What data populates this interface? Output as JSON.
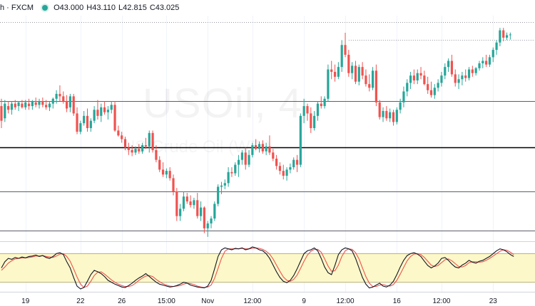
{
  "header": {
    "symbol_label": "h · FXCM",
    "open_label": "O43.000",
    "high_label": "H43.110",
    "low_label": "L42.815",
    "close_label": "C43.025",
    "status_color": "#26a69a"
  },
  "watermark": {
    "symbol": "USOil, 4",
    "description": "US Crude Oil (WTI)"
  },
  "chart_data": {
    "type": "candlestick",
    "instrument": "USOil",
    "ylim": [
      34.6,
      43.8
    ],
    "colors": {
      "up": "#26a69a",
      "down": "#ef5350",
      "grid": "#000000"
    },
    "x_ticks": [
      {
        "label": "19",
        "bar": 7
      },
      {
        "label": "22",
        "bar": 23
      },
      {
        "label": "26",
        "bar": 35
      },
      {
        "label": "15:00",
        "bar": 48
      },
      {
        "label": "Nov",
        "bar": 60
      },
      {
        "label": "12:00",
        "bar": 73
      },
      {
        "label": "9",
        "bar": 88
      },
      {
        "label": "12:00",
        "bar": 100
      },
      {
        "label": "16",
        "bar": 115
      },
      {
        "label": "12:00",
        "bar": 128
      },
      {
        "label": "23",
        "bar": 143
      }
    ],
    "horizontal_levels": [
      {
        "value": 43.55,
        "style": "dotted"
      },
      {
        "value": 40.3,
        "style": "solid"
      },
      {
        "value": 38.4,
        "style": "solid-bold"
      },
      {
        "value": 36.6,
        "style": "solid"
      },
      {
        "value": 35.0,
        "style": "solid"
      }
    ],
    "close_levels": [
      {
        "value": 42.8,
        "from_bar": 101,
        "style": "dotted"
      }
    ],
    "candles": [
      [
        40.1,
        40.4,
        39.2,
        39.5
      ],
      [
        39.6,
        40.35,
        39.45,
        40.2
      ],
      [
        40.1,
        40.3,
        39.8,
        39.95
      ],
      [
        39.95,
        40.3,
        39.75,
        40.2
      ],
      [
        40.2,
        40.35,
        39.95,
        40.05
      ],
      [
        40.1,
        40.3,
        39.9,
        40.25
      ],
      [
        40.2,
        40.35,
        40.0,
        40.05
      ],
      [
        40.05,
        40.35,
        39.95,
        40.25
      ],
      [
        40.2,
        40.4,
        39.95,
        40.1
      ],
      [
        40.1,
        40.35,
        39.95,
        40.3
      ],
      [
        40.25,
        40.45,
        40.05,
        40.15
      ],
      [
        40.15,
        40.4,
        40.0,
        40.3
      ],
      [
        40.3,
        40.45,
        40.05,
        40.15
      ],
      [
        40.15,
        40.35,
        39.95,
        40.05
      ],
      [
        40.05,
        40.3,
        39.9,
        40.2
      ],
      [
        40.2,
        40.45,
        40.0,
        40.4
      ],
      [
        40.4,
        40.75,
        40.2,
        40.6
      ],
      [
        40.6,
        40.95,
        40.3,
        40.5
      ],
      [
        40.5,
        40.7,
        40.2,
        40.3
      ],
      [
        40.3,
        40.55,
        39.85,
        40.0
      ],
      [
        40.05,
        40.6,
        39.85,
        40.5
      ],
      [
        40.5,
        40.6,
        39.7,
        39.8
      ],
      [
        39.8,
        40.05,
        38.95,
        39.05
      ],
      [
        39.05,
        39.5,
        38.95,
        39.4
      ],
      [
        39.4,
        39.9,
        39.3,
        39.7
      ],
      [
        39.7,
        40.0,
        39.05,
        39.2
      ],
      [
        39.2,
        39.6,
        39.05,
        39.5
      ],
      [
        39.5,
        40.1,
        39.4,
        39.95
      ],
      [
        39.95,
        40.35,
        39.55,
        39.7
      ],
      [
        39.7,
        40.2,
        39.45,
        40.05
      ],
      [
        40.05,
        40.3,
        39.75,
        39.85
      ],
      [
        39.85,
        40.1,
        39.55,
        39.95
      ],
      [
        39.95,
        40.3,
        39.8,
        40.15
      ],
      [
        40.15,
        40.3,
        39.05,
        39.1
      ],
      [
        39.1,
        39.3,
        38.85,
        38.9
      ],
      [
        38.9,
        39.05,
        38.6,
        38.75
      ],
      [
        38.75,
        38.85,
        38.3,
        38.4
      ],
      [
        38.4,
        38.6,
        38.1,
        38.3
      ],
      [
        38.3,
        38.5,
        38.05,
        38.2
      ],
      [
        38.2,
        38.45,
        38.1,
        38.35
      ],
      [
        38.35,
        38.55,
        38.15,
        38.25
      ],
      [
        38.25,
        38.6,
        38.15,
        38.5
      ],
      [
        38.5,
        38.8,
        38.35,
        38.45
      ],
      [
        38.45,
        39.1,
        38.2,
        39.0
      ],
      [
        39.0,
        39.1,
        38.2,
        38.3
      ],
      [
        38.3,
        38.5,
        37.8,
        37.9
      ],
      [
        37.9,
        38.05,
        37.4,
        37.5
      ],
      [
        37.5,
        37.8,
        37.2,
        37.3
      ],
      [
        37.3,
        37.55,
        37.15,
        37.45
      ],
      [
        37.45,
        37.6,
        37.05,
        37.15
      ],
      [
        37.15,
        37.3,
        36.45,
        36.6
      ],
      [
        36.6,
        36.75,
        35.4,
        35.6
      ],
      [
        35.6,
        36.1,
        35.4,
        35.9
      ],
      [
        35.9,
        36.6,
        35.8,
        36.4
      ],
      [
        36.4,
        36.55,
        36.1,
        36.2
      ],
      [
        36.2,
        36.45,
        35.95,
        36.05
      ],
      [
        36.05,
        36.35,
        35.9,
        36.25
      ],
      [
        36.25,
        36.55,
        35.5,
        35.6
      ],
      [
        35.6,
        36.2,
        35.4,
        35.95
      ],
      [
        35.95,
        36.0,
        34.9,
        35.1
      ],
      [
        35.1,
        35.4,
        34.75,
        35.3
      ],
      [
        35.3,
        35.6,
        35.1,
        35.5
      ],
      [
        35.5,
        36.2,
        35.4,
        36.1
      ],
      [
        36.1,
        36.9,
        36.0,
        36.8
      ],
      [
        36.8,
        37.0,
        36.5,
        36.85
      ],
      [
        36.85,
        37.1,
        36.7,
        36.95
      ],
      [
        36.95,
        37.6,
        36.8,
        37.4
      ],
      [
        37.4,
        37.6,
        37.2,
        37.35
      ],
      [
        37.35,
        37.8,
        37.25,
        37.7
      ],
      [
        37.7,
        38.1,
        37.2,
        37.9
      ],
      [
        37.9,
        38.3,
        37.7,
        38.2
      ],
      [
        38.2,
        38.4,
        37.5,
        37.7
      ],
      [
        37.7,
        38.3,
        37.6,
        38.1
      ],
      [
        38.1,
        38.6,
        38.0,
        38.5
      ],
      [
        38.5,
        38.75,
        38.3,
        38.35
      ],
      [
        38.35,
        38.65,
        38.2,
        38.55
      ],
      [
        38.55,
        38.7,
        38.15,
        38.25
      ],
      [
        38.25,
        38.6,
        38.1,
        38.45
      ],
      [
        38.45,
        38.9,
        38.1,
        38.2
      ],
      [
        38.2,
        38.35,
        37.85,
        37.95
      ],
      [
        37.95,
        38.1,
        37.5,
        37.65
      ],
      [
        37.65,
        37.8,
        37.3,
        37.45
      ],
      [
        37.45,
        37.7,
        37.1,
        37.25
      ],
      [
        37.25,
        37.6,
        37.05,
        37.5
      ],
      [
        37.5,
        37.75,
        37.35,
        37.6
      ],
      [
        37.6,
        38.0,
        37.5,
        37.9
      ],
      [
        37.9,
        38.1,
        37.4,
        37.7
      ],
      [
        37.7,
        39.8,
        37.6,
        39.7
      ],
      [
        39.7,
        40.4,
        39.4,
        40.1
      ],
      [
        40.1,
        40.2,
        39.5,
        39.8
      ],
      [
        39.8,
        40.05,
        39.0,
        39.2
      ],
      [
        39.2,
        39.9,
        39.1,
        39.7
      ],
      [
        39.7,
        40.3,
        39.5,
        40.2
      ],
      [
        40.2,
        40.5,
        40.0,
        40.1
      ],
      [
        40.1,
        40.5,
        40.0,
        40.4
      ],
      [
        40.4,
        41.8,
        40.3,
        41.6
      ],
      [
        41.6,
        41.95,
        41.2,
        41.5
      ],
      [
        41.5,
        41.8,
        41.1,
        41.3
      ],
      [
        41.3,
        41.9,
        41.2,
        41.7
      ],
      [
        41.7,
        42.8,
        41.5,
        42.6
      ],
      [
        42.6,
        43.1,
        42.1,
        42.2
      ],
      [
        42.2,
        42.4,
        41.3,
        41.45
      ],
      [
        41.45,
        41.9,
        41.2,
        41.75
      ],
      [
        41.75,
        41.95,
        41.0,
        41.1
      ],
      [
        41.1,
        41.8,
        40.95,
        41.7
      ],
      [
        41.7,
        41.9,
        41.2,
        41.35
      ],
      [
        41.35,
        41.6,
        40.9,
        41.0
      ],
      [
        41.0,
        41.4,
        40.7,
        40.85
      ],
      [
        40.85,
        41.7,
        40.75,
        41.55
      ],
      [
        41.55,
        41.8,
        40.1,
        40.25
      ],
      [
        40.25,
        40.35,
        39.55,
        39.65
      ],
      [
        39.65,
        40.05,
        39.45,
        39.9
      ],
      [
        39.9,
        40.1,
        39.5,
        39.6
      ],
      [
        39.6,
        40.0,
        39.45,
        39.85
      ],
      [
        39.85,
        39.95,
        39.3,
        39.45
      ],
      [
        39.45,
        40.05,
        39.35,
        39.95
      ],
      [
        39.95,
        40.4,
        39.8,
        40.25
      ],
      [
        40.25,
        40.9,
        40.05,
        40.7
      ],
      [
        40.7,
        41.2,
        40.5,
        41.05
      ],
      [
        41.05,
        41.5,
        40.8,
        41.35
      ],
      [
        41.35,
        41.6,
        41.0,
        41.15
      ],
      [
        41.15,
        41.6,
        41.0,
        41.45
      ],
      [
        41.45,
        41.7,
        41.2,
        41.35
      ],
      [
        41.35,
        41.55,
        40.95,
        41.0
      ],
      [
        41.0,
        41.3,
        40.6,
        40.75
      ],
      [
        40.75,
        41.1,
        40.45,
        40.55
      ],
      [
        40.55,
        41.0,
        40.4,
        40.85
      ],
      [
        40.85,
        41.2,
        40.7,
        41.05
      ],
      [
        41.05,
        41.5,
        40.9,
        41.35
      ],
      [
        41.35,
        41.85,
        41.2,
        41.7
      ],
      [
        41.7,
        42.05,
        41.5,
        41.95
      ],
      [
        41.95,
        42.2,
        41.3,
        41.4
      ],
      [
        41.4,
        41.6,
        40.9,
        41.05
      ],
      [
        41.05,
        41.4,
        40.8,
        41.2
      ],
      [
        41.2,
        41.5,
        40.95,
        41.35
      ],
      [
        41.35,
        41.6,
        41.1,
        41.25
      ],
      [
        41.25,
        41.7,
        41.15,
        41.6
      ],
      [
        41.6,
        41.75,
        41.3,
        41.45
      ],
      [
        41.45,
        41.7,
        41.35,
        41.65
      ],
      [
        41.65,
        41.95,
        41.55,
        41.85
      ],
      [
        41.85,
        42.1,
        41.65,
        41.95
      ],
      [
        41.95,
        42.2,
        41.7,
        41.8
      ],
      [
        41.8,
        42.2,
        41.7,
        42.1
      ],
      [
        42.1,
        42.5,
        41.9,
        42.4
      ],
      [
        42.4,
        42.8,
        42.2,
        42.7
      ],
      [
        42.7,
        43.3,
        42.55,
        43.2
      ],
      [
        43.2,
        43.3,
        42.75,
        42.9
      ],
      [
        42.9,
        43.11,
        42.8,
        43.0
      ],
      [
        43.0,
        43.11,
        42.82,
        43.03
      ]
    ],
    "stochastic": {
      "ylim": [
        0,
        100
      ],
      "band": [
        20,
        80
      ],
      "band_color": "#fcf8c9",
      "k_color": "#131722",
      "d_color": "#ef5350",
      "k": [
        50,
        63,
        70,
        68,
        72,
        70,
        73,
        71,
        74,
        75,
        77,
        74,
        76,
        72,
        70,
        74,
        80,
        82,
        78,
        63,
        50,
        30,
        12,
        6,
        9,
        22,
        36,
        45,
        42,
        38,
        32,
        24,
        20,
        16,
        13,
        10,
        9,
        13,
        18,
        24,
        29,
        33,
        38,
        32,
        26,
        20,
        16,
        14,
        12,
        10,
        11,
        13,
        16,
        20,
        18,
        14,
        12,
        10,
        9,
        8,
        12,
        24,
        48,
        74,
        88,
        92,
        90,
        88,
        91,
        90,
        92,
        88,
        90,
        94,
        92,
        88,
        86,
        80,
        70,
        56,
        42,
        30,
        22,
        19,
        24,
        34,
        48,
        64,
        80,
        86,
        88,
        92,
        86,
        70,
        52,
        40,
        36,
        55,
        78,
        88,
        92,
        90,
        86,
        70,
        50,
        30,
        16,
        8,
        10,
        14,
        18,
        12,
        10,
        14,
        22,
        36,
        52,
        66,
        76,
        80,
        82,
        79,
        74,
        64,
        55,
        50,
        54,
        60,
        70,
        72,
        66,
        58,
        52,
        50,
        56,
        60,
        66,
        62,
        60,
        64,
        66,
        70,
        74,
        80,
        86,
        90,
        88,
        84,
        78,
        74
      ],
      "d": [
        45,
        52,
        60,
        65,
        69,
        70,
        71,
        71,
        72,
        73,
        75,
        75,
        76,
        74,
        73,
        72,
        75,
        79,
        80,
        74,
        64,
        48,
        31,
        16,
        9,
        12,
        22,
        34,
        41,
        42,
        37,
        31,
        25,
        20,
        16,
        13,
        11,
        11,
        13,
        18,
        24,
        29,
        33,
        34,
        32,
        26,
        21,
        17,
        14,
        12,
        11,
        12,
        13,
        16,
        18,
        17,
        15,
        12,
        10,
        9,
        10,
        14,
        28,
        49,
        70,
        85,
        90,
        90,
        90,
        90,
        91,
        90,
        90,
        91,
        92,
        91,
        89,
        85,
        79,
        69,
        56,
        43,
        31,
        24,
        22,
        26,
        35,
        49,
        64,
        77,
        85,
        89,
        89,
        83,
        69,
        54,
        43,
        44,
        56,
        74,
        86,
        90,
        89,
        82,
        69,
        50,
        32,
        18,
        11,
        11,
        14,
        15,
        13,
        12,
        15,
        24,
        37,
        51,
        65,
        74,
        79,
        80,
        78,
        72,
        64,
        56,
        53,
        55,
        61,
        67,
        69,
        65,
        59,
        53,
        52,
        55,
        61,
        63,
        63,
        62,
        63,
        66,
        70,
        75,
        80,
        85,
        88,
        87,
        83,
        78
      ]
    }
  }
}
